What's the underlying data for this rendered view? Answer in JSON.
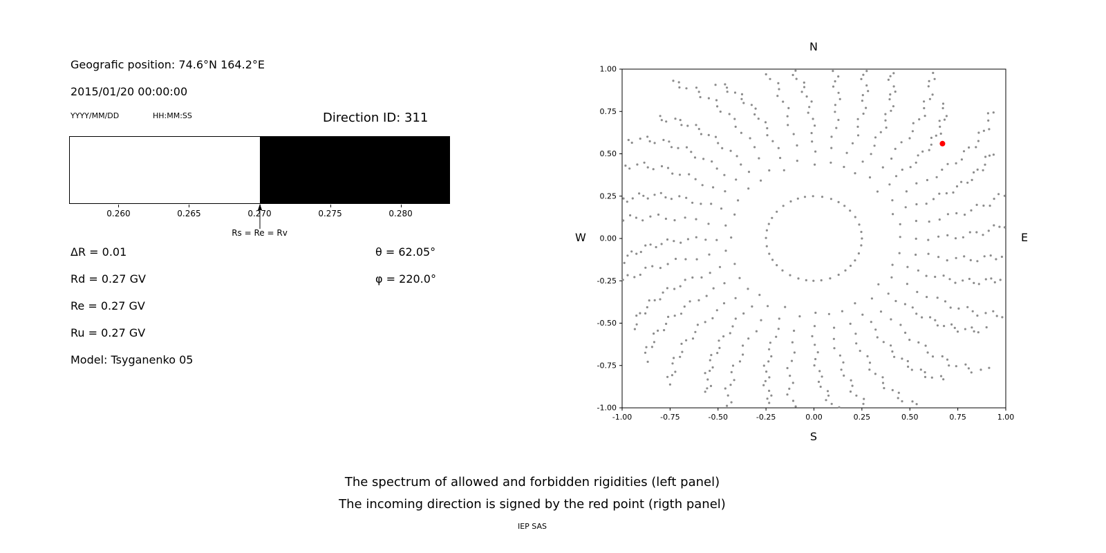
{
  "left_panel": {
    "geo_position": "Geografic position: 74.6°N 164.2°E",
    "datetime": "2015/01/20 00:00:00",
    "date_format_hint": "YYYY/MM/DD",
    "time_format_hint": "HH:MM:SS",
    "direction_id": "Direction ID: 311",
    "params_left": [
      "ΔR = 0.01",
      "Rd = 0.27 GV",
      "Re = 0.27 GV",
      "Ru = 0.27 GV",
      "Model: Tsyganenko 05"
    ],
    "params_right": [
      "θ = 62.05°",
      "φ = 220.0°"
    ]
  },
  "captions": {
    "line1": "The spectrum of allowed and forbidden rigidities (left panel)",
    "line2": "The incoming direction is signed by the red point (rigth panel)",
    "credit": "IEP SAS"
  },
  "chart_data": [
    {
      "id": "rigidity_spectrum",
      "type": "area",
      "title": "",
      "description": "Allowed (white, left) and forbidden (black, right) rigidity regions; boundary marked by arrow Rs = Re = Rv",
      "x_min": 0.2565,
      "x_max": 0.2835,
      "boundary": 0.27,
      "x_ticks": [
        0.26,
        0.265,
        0.27,
        0.275,
        0.28
      ],
      "x_tick_labels": [
        "0.260",
        "0.265",
        "0.270",
        "0.275",
        "0.280"
      ],
      "allowed_color": "#ffffff",
      "forbidden_color": "#000000",
      "arrow_label": "Rs = Re = Rv"
    },
    {
      "id": "direction_plot",
      "type": "scatter",
      "description": "Incoming direction map; gray dot spokes radiating from inner ring, red point marks incoming direction",
      "compass": {
        "top": "N",
        "bottom": "S",
        "left": "W",
        "right": "E"
      },
      "xlim": [
        -1,
        1
      ],
      "ylim": [
        -1,
        1
      ],
      "x_tick_labels": [
        "-1.00",
        "-0.75",
        "-0.50",
        "-0.25",
        "0.00",
        "0.25",
        "0.50",
        "0.75",
        "1.00"
      ],
      "y_tick_labels": [
        "1.00",
        "0.75",
        "0.50",
        "0.25",
        "0.00",
        "-0.25",
        "-0.50",
        "-0.75",
        "-1.00"
      ],
      "grid": false,
      "dot_color": "#8c8c8c",
      "red_point": {
        "x": 0.67,
        "y": 0.56,
        "color": "#ff0000"
      },
      "scatter_gen": {
        "n_spokes": 36,
        "points_per_spoke": 20,
        "r_inner": 0.25,
        "r_outer": 1.12,
        "density_exp": 0.5,
        "curve_deg": 9,
        "length_jitter": 0.07
      }
    }
  ]
}
